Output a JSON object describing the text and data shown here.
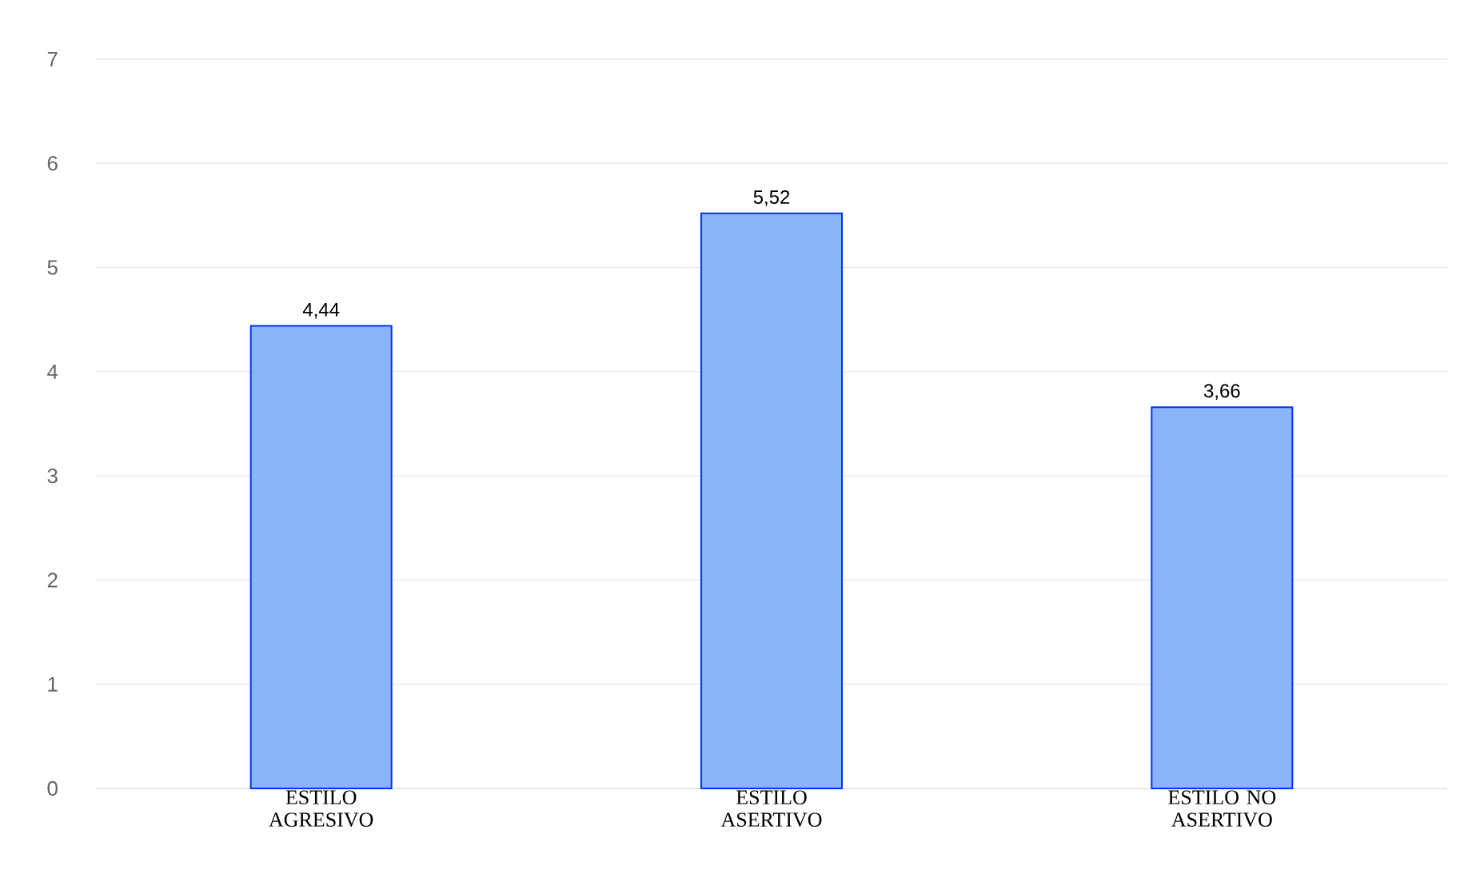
{
  "chart_data": {
    "type": "bar",
    "categories": [
      "ESTILO AGRESIVO",
      "ESTILO ASERTIVO",
      "ESTILO NO ASERTIVO"
    ],
    "values": [
      4.44,
      5.52,
      3.66
    ],
    "value_labels": [
      "4,44",
      "5,52",
      "3,66"
    ],
    "color": "#8ab4f8",
    "ylim": [
      0,
      7
    ],
    "yticks": [
      0,
      1,
      2,
      3,
      4,
      5,
      6,
      7
    ],
    "grid": "y"
  }
}
